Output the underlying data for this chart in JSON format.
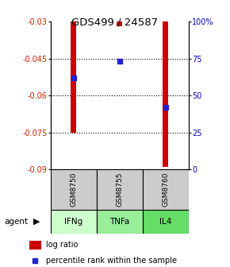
{
  "title": "GDS499 / 24587",
  "samples": [
    "GSM8750",
    "GSM8755",
    "GSM8760"
  ],
  "agents": [
    "IFNg",
    "TNFa",
    "IL4"
  ],
  "log_ratios": [
    -0.075,
    -0.032,
    -0.089
  ],
  "percentile_ranks": [
    62,
    73,
    42
  ],
  "ylim_left": [
    -0.09,
    -0.03
  ],
  "ylim_right": [
    0,
    100
  ],
  "yticks_left": [
    -0.09,
    -0.075,
    -0.06,
    -0.045,
    -0.03
  ],
  "yticks_right": [
    0,
    25,
    50,
    75,
    100
  ],
  "ytick_labels_left": [
    "-0.09",
    "-0.075",
    "-0.06",
    "-0.045",
    "-0.03"
  ],
  "ytick_labels_right": [
    "0",
    "25",
    "50",
    "75",
    "100%"
  ],
  "bar_color": "#cc0000",
  "dot_color": "#2222cc",
  "gsm_bg_color": "#cccccc",
  "agent_colors": [
    "#ccffcc",
    "#99ee99",
    "#66dd66"
  ],
  "legend_bar_color": "#cc0000",
  "legend_dot_color": "#2222cc",
  "bar_width": 0.12
}
